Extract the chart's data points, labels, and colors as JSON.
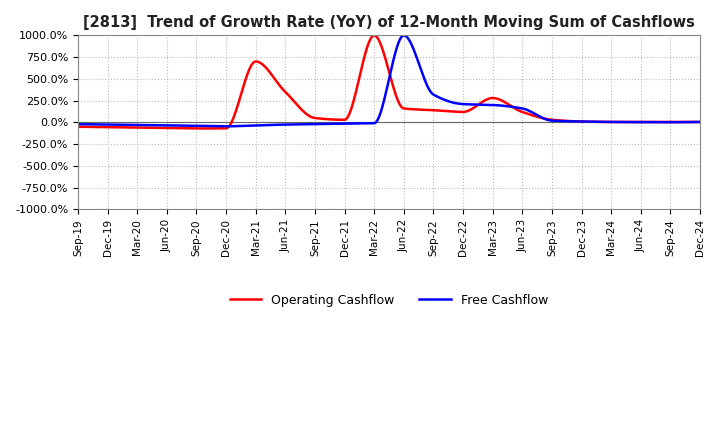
{
  "title": "[2813]  Trend of Growth Rate (YoY) of 12-Month Moving Sum of Cashflows",
  "ylim": [
    -1000,
    1000
  ],
  "yticks": [
    -1000,
    -750,
    -500,
    -250,
    0,
    250,
    500,
    750,
    1000
  ],
  "ytick_labels": [
    "-1000.0%",
    "-750.0%",
    "-500.0%",
    "-250.0%",
    "0.0%",
    "250.0%",
    "500.0%",
    "750.0%",
    "1000.0%"
  ],
  "background_color": "#ffffff",
  "plot_bg_color": "#ffffff",
  "grid_color": "#bbbbbb",
  "operating_color": "#ff0000",
  "free_color": "#0000ff",
  "legend_labels": [
    "Operating Cashflow",
    "Free Cashflow"
  ],
  "x_labels": [
    "Sep-19",
    "Dec-19",
    "Mar-20",
    "Jun-20",
    "Sep-20",
    "Dec-20",
    "Mar-21",
    "Jun-21",
    "Sep-21",
    "Dec-21",
    "Mar-22",
    "Jun-22",
    "Sep-22",
    "Dec-22",
    "Mar-23",
    "Jun-23",
    "Sep-23",
    "Dec-23",
    "Mar-24",
    "Jun-24",
    "Sep-24",
    "Dec-24"
  ],
  "operating_y": [
    -50,
    -55,
    -60,
    -65,
    -70,
    -68,
    700,
    350,
    50,
    30,
    1000,
    160,
    140,
    120,
    280,
    120,
    30,
    10,
    5,
    5,
    5,
    5
  ],
  "free_y": [
    -20,
    -25,
    -30,
    -35,
    -40,
    -45,
    -35,
    -25,
    -20,
    -15,
    -10,
    1000,
    320,
    210,
    200,
    160,
    20,
    10,
    5,
    3,
    2,
    5
  ]
}
